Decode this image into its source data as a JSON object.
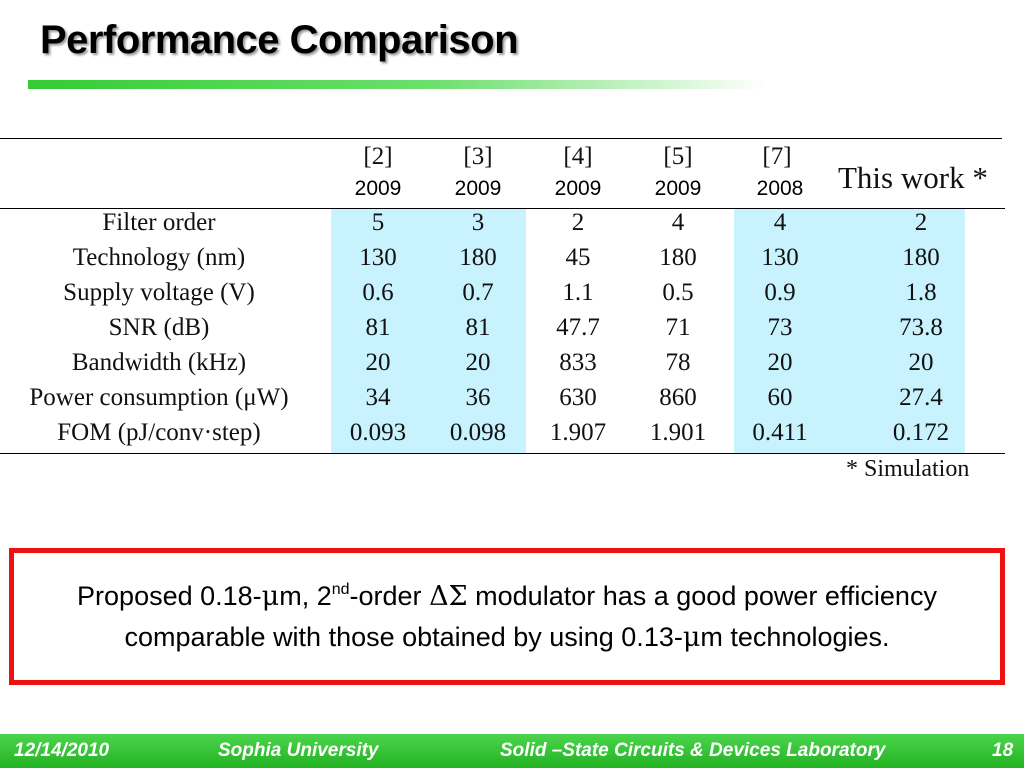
{
  "slide": {
    "title": "Performance Comparison"
  },
  "table": {
    "columns": [
      {
        "ref": "[2]",
        "year": "2009"
      },
      {
        "ref": "[3]",
        "year": "2009"
      },
      {
        "ref": "[4]",
        "year": "2009"
      },
      {
        "ref": "[5]",
        "year": "2009"
      },
      {
        "ref": "[7]",
        "year": "2008"
      }
    ],
    "this_work_label": "This work *",
    "rows": [
      {
        "label": "Filter order",
        "values": [
          "5",
          "3",
          "2",
          "4",
          "4",
          "2"
        ]
      },
      {
        "label": "Technology (nm)",
        "values": [
          "130",
          "180",
          "45",
          "180",
          "130",
          "180"
        ]
      },
      {
        "label": "Supply voltage (V)",
        "values": [
          "0.6",
          "0.7",
          "1.1",
          "0.5",
          "0.9",
          "1.8"
        ]
      },
      {
        "label": "SNR (dB)",
        "values": [
          "81",
          "81",
          "47.7",
          "71",
          "73",
          "73.8"
        ]
      },
      {
        "label": "Bandwidth (kHz)",
        "values": [
          "20",
          "20",
          "833",
          "78",
          "20",
          "20"
        ]
      },
      {
        "label": "Power consumption (μW)",
        "values": [
          "34",
          "36",
          "630",
          "860",
          "60",
          "27.4"
        ]
      },
      {
        "label": "FOM (pJ/conv·step)",
        "values": [
          "0.093",
          "0.098",
          "1.907",
          "1.901",
          "0.411",
          "0.172"
        ]
      }
    ],
    "footnote": "* Simulation",
    "highlight_color": "#c8f2fd"
  },
  "callout": {
    "part1": "Proposed 0.18-",
    "mu1": "μ",
    "part2": "m, 2",
    "sup": "nd",
    "part3": "-order ",
    "delta_sigma": "ΔΣ",
    "part4": " modulator has a good power efficiency comparable with those obtained by using 0.13-",
    "mu2": "μ",
    "part5": "m technologies.",
    "border_color": "#ee1111"
  },
  "footer": {
    "date": "12/14/2010",
    "university": "Sophia University",
    "lab": "Solid –State Circuits & Devices Laboratory",
    "page": "18",
    "color": "#33bb33"
  }
}
